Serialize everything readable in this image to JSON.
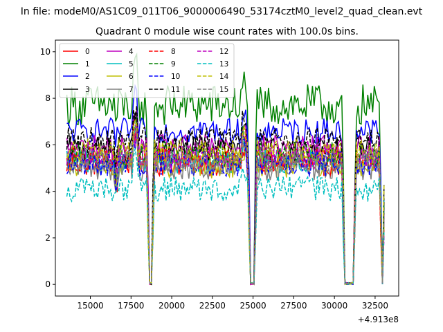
{
  "figure": {
    "suptitle": "In file: modeM0/AS1C09_011T06_9000006490_53174cztM0_level2_quad_clean.evt",
    "offset_label": "+4.913e8"
  },
  "chart_data": {
    "type": "line",
    "title": "Quadrant 0 module wise count rates with 100.0s bins.",
    "xlabel": "",
    "ylabel": "",
    "xlim": [
      12850,
      33950
    ],
    "ylim": [
      -0.5,
      10.5
    ],
    "x_offset": 491300000,
    "xticks": [
      15000,
      17500,
      20000,
      22500,
      25000,
      27500,
      30000,
      32500
    ],
    "xtick_labels": [
      "15000",
      "17500",
      "20000",
      "22500",
      "25000",
      "27500",
      "30000",
      "32500"
    ],
    "yticks": [
      0,
      2,
      4,
      6,
      8,
      10
    ],
    "ytick_labels": [
      "0",
      "2",
      "4",
      "6",
      "8",
      "10"
    ],
    "grid": false,
    "legend_position": "top-left",
    "legend_columns": 4,
    "x_start": 13550,
    "x_step": 100,
    "gaps": [
      {
        "start": 18600,
        "end": 18800
      },
      {
        "start": 24800,
        "end": 25100
      },
      {
        "start": 30600,
        "end": 31200
      },
      {
        "start": 32900,
        "end": 33000
      }
    ],
    "series": [
      {
        "name": "0",
        "color": "#ff0000",
        "style": "solid",
        "mean": 5.2
      },
      {
        "name": "1",
        "color": "#008000",
        "style": "solid",
        "mean": 7.7
      },
      {
        "name": "2",
        "color": "#0000ff",
        "style": "solid",
        "mean": 6.6
      },
      {
        "name": "3",
        "color": "#000000",
        "style": "solid",
        "mean": 5.8
      },
      {
        "name": "4",
        "color": "#bf00bf",
        "style": "solid",
        "mean": 5.9
      },
      {
        "name": "5",
        "color": "#00bfbf",
        "style": "solid",
        "mean": 5.3
      },
      {
        "name": "6",
        "color": "#bfbf00",
        "style": "solid",
        "mean": 5.1
      },
      {
        "name": "7",
        "color": "#808080",
        "style": "solid",
        "mean": 5.0
      },
      {
        "name": "8",
        "color": "#ff0000",
        "style": "dashed",
        "mean": 5.4
      },
      {
        "name": "9",
        "color": "#008000",
        "style": "dashed",
        "mean": 5.6
      },
      {
        "name": "10",
        "color": "#0000ff",
        "style": "dashed",
        "mean": 5.2
      },
      {
        "name": "11",
        "color": "#000000",
        "style": "dashed",
        "mean": 6.2
      },
      {
        "name": "12",
        "color": "#bf00bf",
        "style": "dashed",
        "mean": 5.5
      },
      {
        "name": "13",
        "color": "#00bfbf",
        "style": "dashed",
        "mean": 4.1
      },
      {
        "name": "14",
        "color": "#bfbf00",
        "style": "dashed",
        "mean": 5.7
      },
      {
        "name": "15",
        "color": "#808080",
        "style": "dashed",
        "mean": 5.3
      }
    ]
  }
}
